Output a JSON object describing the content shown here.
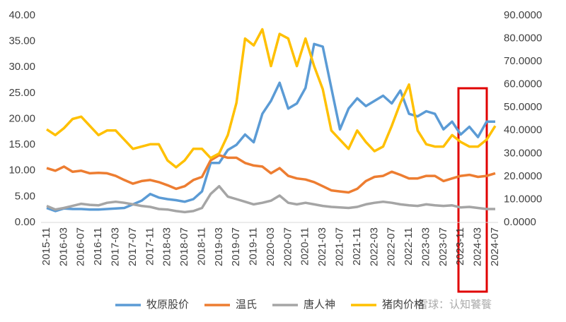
{
  "chart_data": {
    "type": "line",
    "categories": [
      "2015-11",
      null,
      "2016-03",
      null,
      "2016-07",
      null,
      "2016-11",
      null,
      "2017-03",
      null,
      "2017-07",
      null,
      "2017-11",
      null,
      "2018-03",
      null,
      "2018-07",
      null,
      "2018-11",
      null,
      "2019-03",
      null,
      "2019-07",
      null,
      "2019-11",
      null,
      "2020-03",
      null,
      "2020-07",
      null,
      "2020-11",
      null,
      "2021-03",
      null,
      "2021-07",
      null,
      "2021-11",
      null,
      "2022-03",
      null,
      "2022-07",
      null,
      "2022-11",
      null,
      "2023-03",
      null,
      "2023-07",
      null,
      "2023-11",
      null,
      "2024-03",
      null,
      "2024-07"
    ],
    "series": [
      {
        "name": "牧原股价",
        "color": "#5b9bd5",
        "values": [
          2.8,
          2.2,
          2.7,
          2.6,
          2.6,
          2.5,
          2.5,
          2.6,
          2.7,
          2.8,
          3.5,
          4.2,
          5.5,
          4.8,
          4.5,
          4.3,
          4.0,
          4.5,
          6.0,
          11.5,
          11.5,
          14.0,
          15.0,
          17.0,
          15.5,
          21.0,
          23.5,
          27.0,
          22.0,
          23.0,
          26.0,
          34.5,
          34.0,
          26.0,
          18.0,
          22.0,
          24.0,
          22.5,
          23.5,
          24.5,
          23.0,
          25.5,
          21.0,
          20.5,
          21.5,
          21.0,
          18.0,
          19.5,
          17.0,
          18.5,
          16.5,
          19.5,
          19.5
        ]
      },
      {
        "name": "温氏",
        "color": "#ed7d31",
        "values": [
          10.5,
          10.0,
          10.8,
          9.8,
          10.0,
          9.5,
          9.6,
          9.5,
          9.0,
          8.2,
          7.5,
          8.0,
          8.2,
          7.8,
          7.2,
          6.5,
          7.0,
          8.2,
          8.8,
          12.0,
          13.0,
          12.5,
          12.5,
          11.5,
          11.0,
          10.8,
          9.5,
          10.5,
          9.0,
          8.5,
          8.3,
          7.8,
          7.0,
          6.2,
          6.0,
          5.8,
          6.5,
          8.0,
          8.8,
          9.0,
          9.8,
          9.2,
          8.5,
          8.5,
          9.0,
          9.0,
          8.0,
          8.5,
          9.0,
          9.2,
          8.8,
          9.0,
          9.5
        ]
      },
      {
        "name": "唐人神",
        "color": "#a5a5a5",
        "values": [
          3.2,
          2.5,
          2.8,
          3.2,
          3.6,
          3.4,
          3.3,
          3.8,
          4.0,
          3.8,
          3.5,
          3.2,
          3.0,
          2.6,
          2.5,
          2.2,
          2.0,
          2.2,
          2.8,
          5.5,
          7.0,
          5.0,
          4.5,
          4.0,
          3.5,
          3.8,
          4.2,
          5.2,
          3.8,
          3.5,
          3.8,
          3.5,
          3.2,
          3.0,
          2.9,
          2.8,
          3.0,
          3.5,
          3.8,
          4.0,
          3.8,
          3.5,
          3.3,
          3.2,
          3.5,
          3.3,
          3.2,
          3.3,
          2.9,
          3.0,
          2.8,
          2.6,
          2.6
        ]
      },
      {
        "name": "猪肉价格",
        "color": "#ffc000",
        "axis": "y2",
        "values": [
          40.5,
          38,
          41,
          45,
          46,
          42,
          38,
          40,
          40,
          36,
          32,
          33,
          34,
          34,
          27,
          24,
          27,
          32,
          32,
          28,
          30,
          38,
          52,
          80,
          77,
          84,
          68,
          82,
          80,
          68,
          80,
          68,
          58,
          40,
          36,
          32,
          40,
          35,
          31,
          33,
          42,
          52,
          60,
          40,
          34,
          33,
          33,
          38,
          35,
          33,
          33,
          36,
          42
        ]
      }
    ],
    "ylim": [
      0,
      40
    ],
    "yticks": [
      {
        "value": 0,
        "label": "0.00"
      },
      {
        "value": 5,
        "label": "5.00"
      },
      {
        "value": 10,
        "label": "10.00"
      },
      {
        "value": 15,
        "label": "15.00"
      },
      {
        "value": 20,
        "label": "20.00"
      },
      {
        "value": 25,
        "label": "25.00"
      },
      {
        "value": 30,
        "label": "30.00"
      },
      {
        "value": 35,
        "label": "35.00"
      },
      {
        "value": 40,
        "label": "40.00"
      }
    ],
    "y2lim": [
      0,
      90
    ],
    "y2ticks": [
      {
        "value": 0,
        "label": "0.0000"
      },
      {
        "value": 10,
        "label": "10.0000"
      },
      {
        "value": 20,
        "label": "20.0000"
      },
      {
        "value": 30,
        "label": "30.0000"
      },
      {
        "value": 40,
        "label": "40.0000"
      },
      {
        "value": 50,
        "label": "50.0000"
      },
      {
        "value": 60,
        "label": "60.0000"
      },
      {
        "value": 70,
        "label": "70.0000"
      },
      {
        "value": 80,
        "label": "80.0000"
      },
      {
        "value": 90,
        "label": "90.0000"
      }
    ],
    "grid": false,
    "legend": "bottom",
    "watermark": "雪球：认知饕餮"
  }
}
